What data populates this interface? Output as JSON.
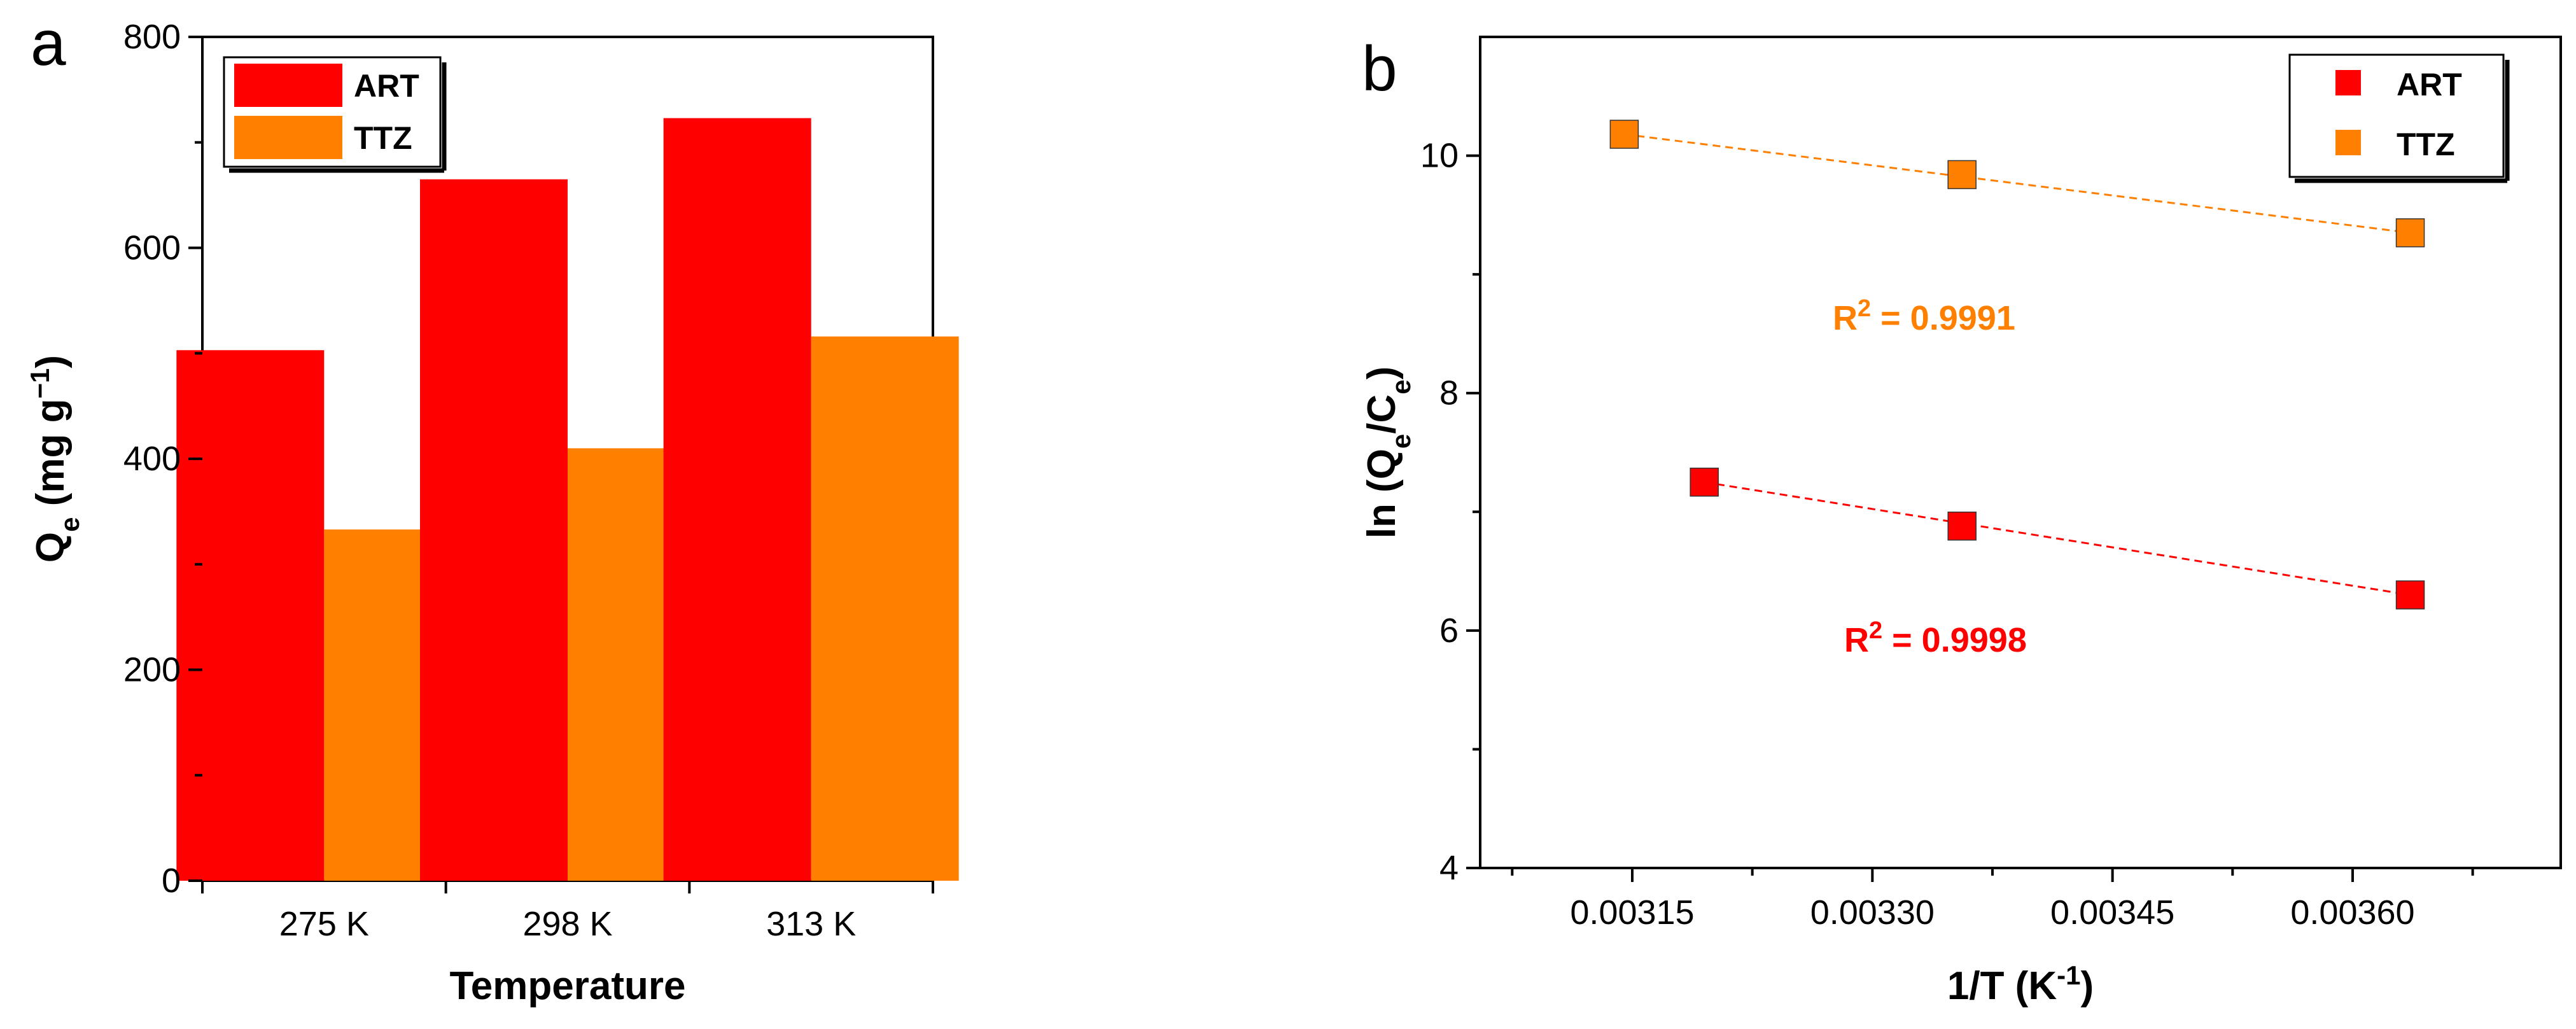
{
  "chart_data": [
    {
      "panel": "a",
      "type": "bar",
      "categories": [
        "275 K",
        "298 K",
        "313 K"
      ],
      "series": [
        {
          "name": "ART",
          "values": [
            503,
            665,
            723
          ],
          "color": "#ff0000"
        },
        {
          "name": "TTZ",
          "values": [
            333,
            410,
            516
          ],
          "color": "#ff8000"
        }
      ],
      "xlabel": "Temperature",
      "ylabel": {
        "main": "Q",
        "sub": "e",
        "rest": " (mg g",
        "sup": "−1",
        "end": ")"
      },
      "ylim": [
        0,
        800
      ],
      "yticks": [
        "0",
        "200",
        "400",
        "600",
        "800"
      ],
      "legend": "top-left"
    },
    {
      "panel": "b",
      "type": "scatter",
      "series": [
        {
          "name": "ART",
          "color": "#ff0000",
          "x": [
            0.003195,
            0.003356,
            0.003636
          ],
          "y": [
            7.25,
            6.88,
            6.3
          ],
          "fit_x": [
            0.003195,
            0.003636
          ],
          "fit_y": [
            7.25,
            6.3
          ],
          "annotation": {
            "r": "R",
            "sup": "2",
            "rest": " = 0.9998"
          }
        },
        {
          "name": "TTZ",
          "color": "#ff8000",
          "x": [
            0.003145,
            0.003356,
            0.003636
          ],
          "y": [
            10.18,
            9.84,
            9.35
          ],
          "fit_x": [
            0.003145,
            0.003636
          ],
          "fit_y": [
            10.18,
            9.35
          ],
          "annotation": {
            "r": "R",
            "sup": "2",
            "rest": " = 0.9991"
          }
        }
      ],
      "xlabel": {
        "main": "1/T (K",
        "sup": "-1",
        "end": ")"
      },
      "ylabel": {
        "main": "ln (Q",
        "sub1": "e",
        "mid": "/C",
        "sub2": "e",
        "end": ")"
      },
      "xlim": [
        0.003055,
        0.00373
      ],
      "ylim": [
        4,
        11
      ],
      "xticks": [
        0.00315,
        0.0033,
        0.00345,
        0.0036
      ],
      "xtick_labels": [
        "0.00315",
        "0.00330",
        "0.00345",
        "0.00360"
      ],
      "yticks": [
        4,
        6,
        8,
        10
      ],
      "ytick_labels": [
        "4",
        "6",
        "8",
        "10"
      ],
      "legend": "top-right"
    }
  ]
}
